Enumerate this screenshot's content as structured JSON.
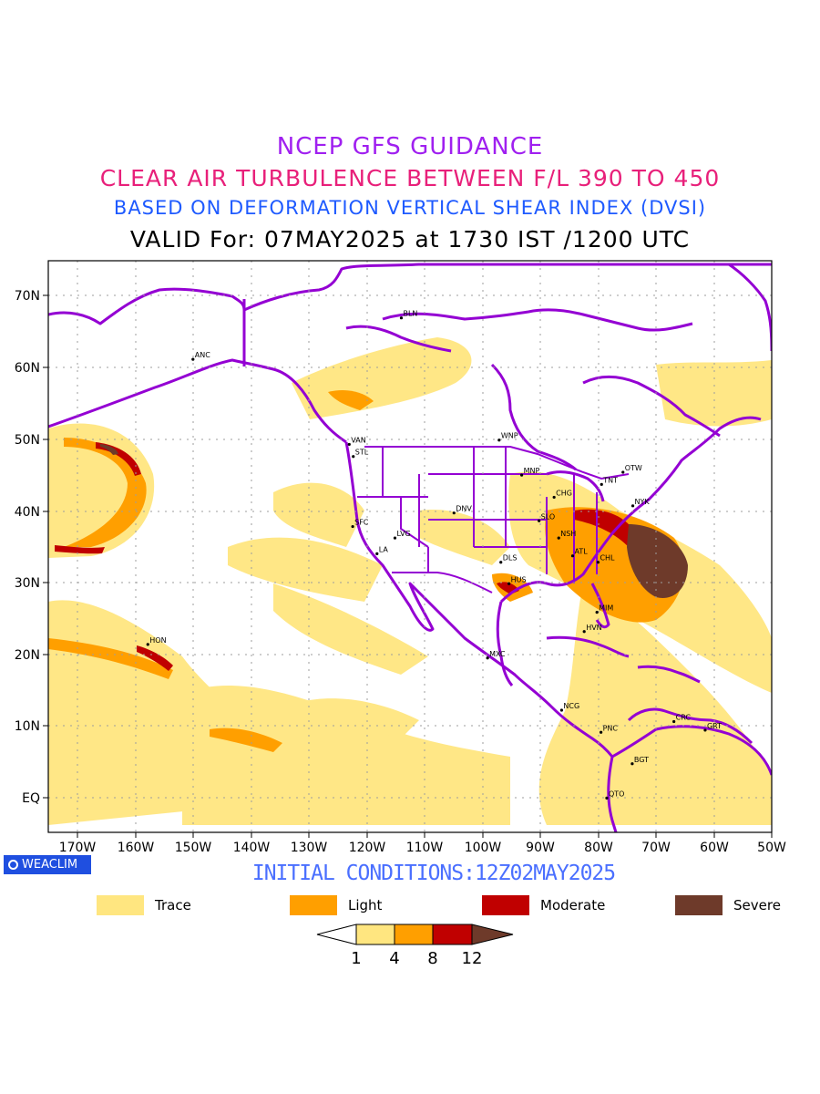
{
  "titles": {
    "line1": "NCEP GFS GUIDANCE",
    "line2": "CLEAR AIR TURBULENCE BETWEEN F/L 390 TO 450",
    "line3": "BASED ON DEFORMATION VERTICAL SHEAR INDEX (DVSI)",
    "line4": "VALID For: 07MAY2025 at 1730 IST /1200 UTC"
  },
  "map": {
    "lat_labels": [
      "70N",
      "60N",
      "50N",
      "40N",
      "30N",
      "20N",
      "10N",
      "EQ"
    ],
    "lon_labels": [
      "170W",
      "160W",
      "150W",
      "140W",
      "130W",
      "120W",
      "110W",
      "100W",
      "90W",
      "80W",
      "70W",
      "60W",
      "50W"
    ],
    "stations": [
      {
        "code": "ANC",
        "lon": -150.0,
        "lat": 61.2
      },
      {
        "code": "BLN",
        "lon": -114.0,
        "lat": 67.0
      },
      {
        "code": "VAN",
        "lon": -123.0,
        "lat": 49.3
      },
      {
        "code": "STL",
        "lon": -122.3,
        "lat": 47.6
      },
      {
        "code": "WNP",
        "lon": -97.1,
        "lat": 49.9
      },
      {
        "code": "MNP",
        "lon": -93.2,
        "lat": 45.0
      },
      {
        "code": "OTW",
        "lon": -75.7,
        "lat": 45.4
      },
      {
        "code": "TNT",
        "lon": -79.4,
        "lat": 43.7
      },
      {
        "code": "CHG",
        "lon": -87.6,
        "lat": 41.9
      },
      {
        "code": "NYK",
        "lon": -74.0,
        "lat": 40.7
      },
      {
        "code": "DNV",
        "lon": -104.9,
        "lat": 39.7
      },
      {
        "code": "SFC",
        "lon": -122.4,
        "lat": 37.8
      },
      {
        "code": "LVG",
        "lon": -115.1,
        "lat": 36.2
      },
      {
        "code": "SLO",
        "lon": -90.2,
        "lat": 38.6
      },
      {
        "code": "NSH",
        "lon": -86.8,
        "lat": 36.2
      },
      {
        "code": "LA",
        "lon": -118.2,
        "lat": 34.0
      },
      {
        "code": "ATL",
        "lon": -84.4,
        "lat": 33.7
      },
      {
        "code": "DLS",
        "lon": -96.8,
        "lat": 32.8
      },
      {
        "code": "CHL",
        "lon": -80.0,
        "lat": 32.8
      },
      {
        "code": "HUS",
        "lon": -95.4,
        "lat": 29.8
      },
      {
        "code": "MIM",
        "lon": -80.2,
        "lat": 25.8
      },
      {
        "code": "HON",
        "lon": -157.8,
        "lat": 21.3
      },
      {
        "code": "HVN",
        "lon": -82.4,
        "lat": 23.1
      },
      {
        "code": "MXC",
        "lon": -99.1,
        "lat": 19.4
      },
      {
        "code": "NCG",
        "lon": -86.3,
        "lat": 12.1
      },
      {
        "code": "CRC",
        "lon": -66.9,
        "lat": 10.5
      },
      {
        "code": "PNC",
        "lon": -79.5,
        "lat": 9.0
      },
      {
        "code": "GRT",
        "lon": -61.5,
        "lat": 9.3
      },
      {
        "code": "BGT",
        "lon": -74.1,
        "lat": 4.6
      },
      {
        "code": "QTO",
        "lon": -78.5,
        "lat": -0.2
      }
    ]
  },
  "footer": {
    "badge": "WEACLIM",
    "initial": "INITIAL CONDITIONS:12Z02MAY2025"
  },
  "legend": [
    {
      "label": "Trace",
      "color": "#ffe680"
    },
    {
      "label": "Light",
      "color": "#ff9f00"
    },
    {
      "label": "Moderate",
      "color": "#c00000"
    },
    {
      "label": "Severe",
      "color": "#6e3a2a"
    }
  ],
  "colorbar": {
    "ticks": [
      "1",
      "4",
      "8",
      "12"
    ]
  },
  "colors": {
    "coast": "#9400d3",
    "trace": "#ffe680",
    "light": "#ff9f00",
    "moderate": "#c00000",
    "severe": "#6e3a2a"
  }
}
